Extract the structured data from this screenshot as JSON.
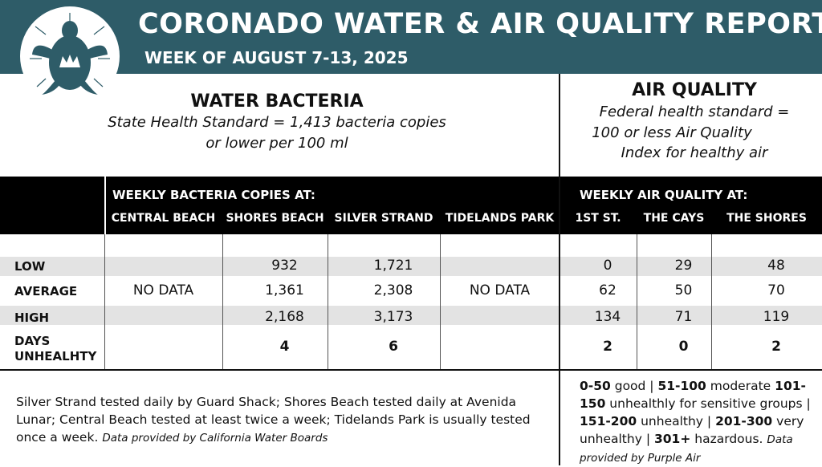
{
  "header": {
    "title": "CORONADO WATER & AIR QUALITY REPORT",
    "subtitle": "WEEK OF AUGUST 7-13, 2025"
  },
  "water": {
    "heading": "WATER BACTERIA",
    "standard": [
      "State Health Standard  = 1,413 bacteria copies",
      "or lower per 100 ml"
    ]
  },
  "air": {
    "heading": "AIR QUALITY",
    "standard": [
      "Federal health standard =",
      "100 or less Air Quality",
      "Index for healthy air"
    ]
  },
  "table": {
    "groups": [
      "WEEKLY BACTERIA COPIES AT:",
      "WEEKLY AIR QUALITY AT:"
    ],
    "columns": [
      "CENTRAL BEACH",
      "SHORES BEACH",
      "SILVER STRAND",
      "TIDELANDS PARK",
      "1ST ST.",
      "THE CAYS",
      "THE SHORES"
    ],
    "rows": [
      {
        "label": "LOW",
        "cells": [
          null,
          "932",
          "1,721",
          null,
          "0",
          "29",
          "48"
        ]
      },
      {
        "label": "AVERAGE",
        "cells": [
          "NO DATA",
          "1,361",
          "2,308",
          "NO DATA",
          "62",
          "50",
          "70"
        ]
      },
      {
        "label": "HIGH",
        "cells": [
          null,
          "2,168",
          "3,173",
          null,
          "134",
          "71",
          "119"
        ]
      },
      {
        "label": "DAYS UNHEALHTY",
        "cells": [
          null,
          "4",
          "6",
          null,
          "2",
          "0",
          "2"
        ]
      }
    ]
  },
  "water_note": {
    "text": "Silver Strand tested daily by Guard Shack; Shores Beach tested daily at Avenida Lunar; Central Beach tested at least twice a week; Tidelands Park is usually tested once a week.",
    "credit": "Data provided by California Water Boards"
  },
  "air_legend": {
    "items": [
      {
        "range": "0-50",
        "label": "good |"
      },
      {
        "range": "51-100",
        "label": "moderate"
      },
      {
        "range": "101-150",
        "label": "unhealthly for sensitive groups |"
      },
      {
        "range": "151-200",
        "label": "unhealthy |"
      },
      {
        "range": "201-300",
        "label": "very unhealthy |"
      },
      {
        "range": "301+",
        "label": "hazardous."
      }
    ],
    "credit": "Data provided by Purple Air"
  }
}
